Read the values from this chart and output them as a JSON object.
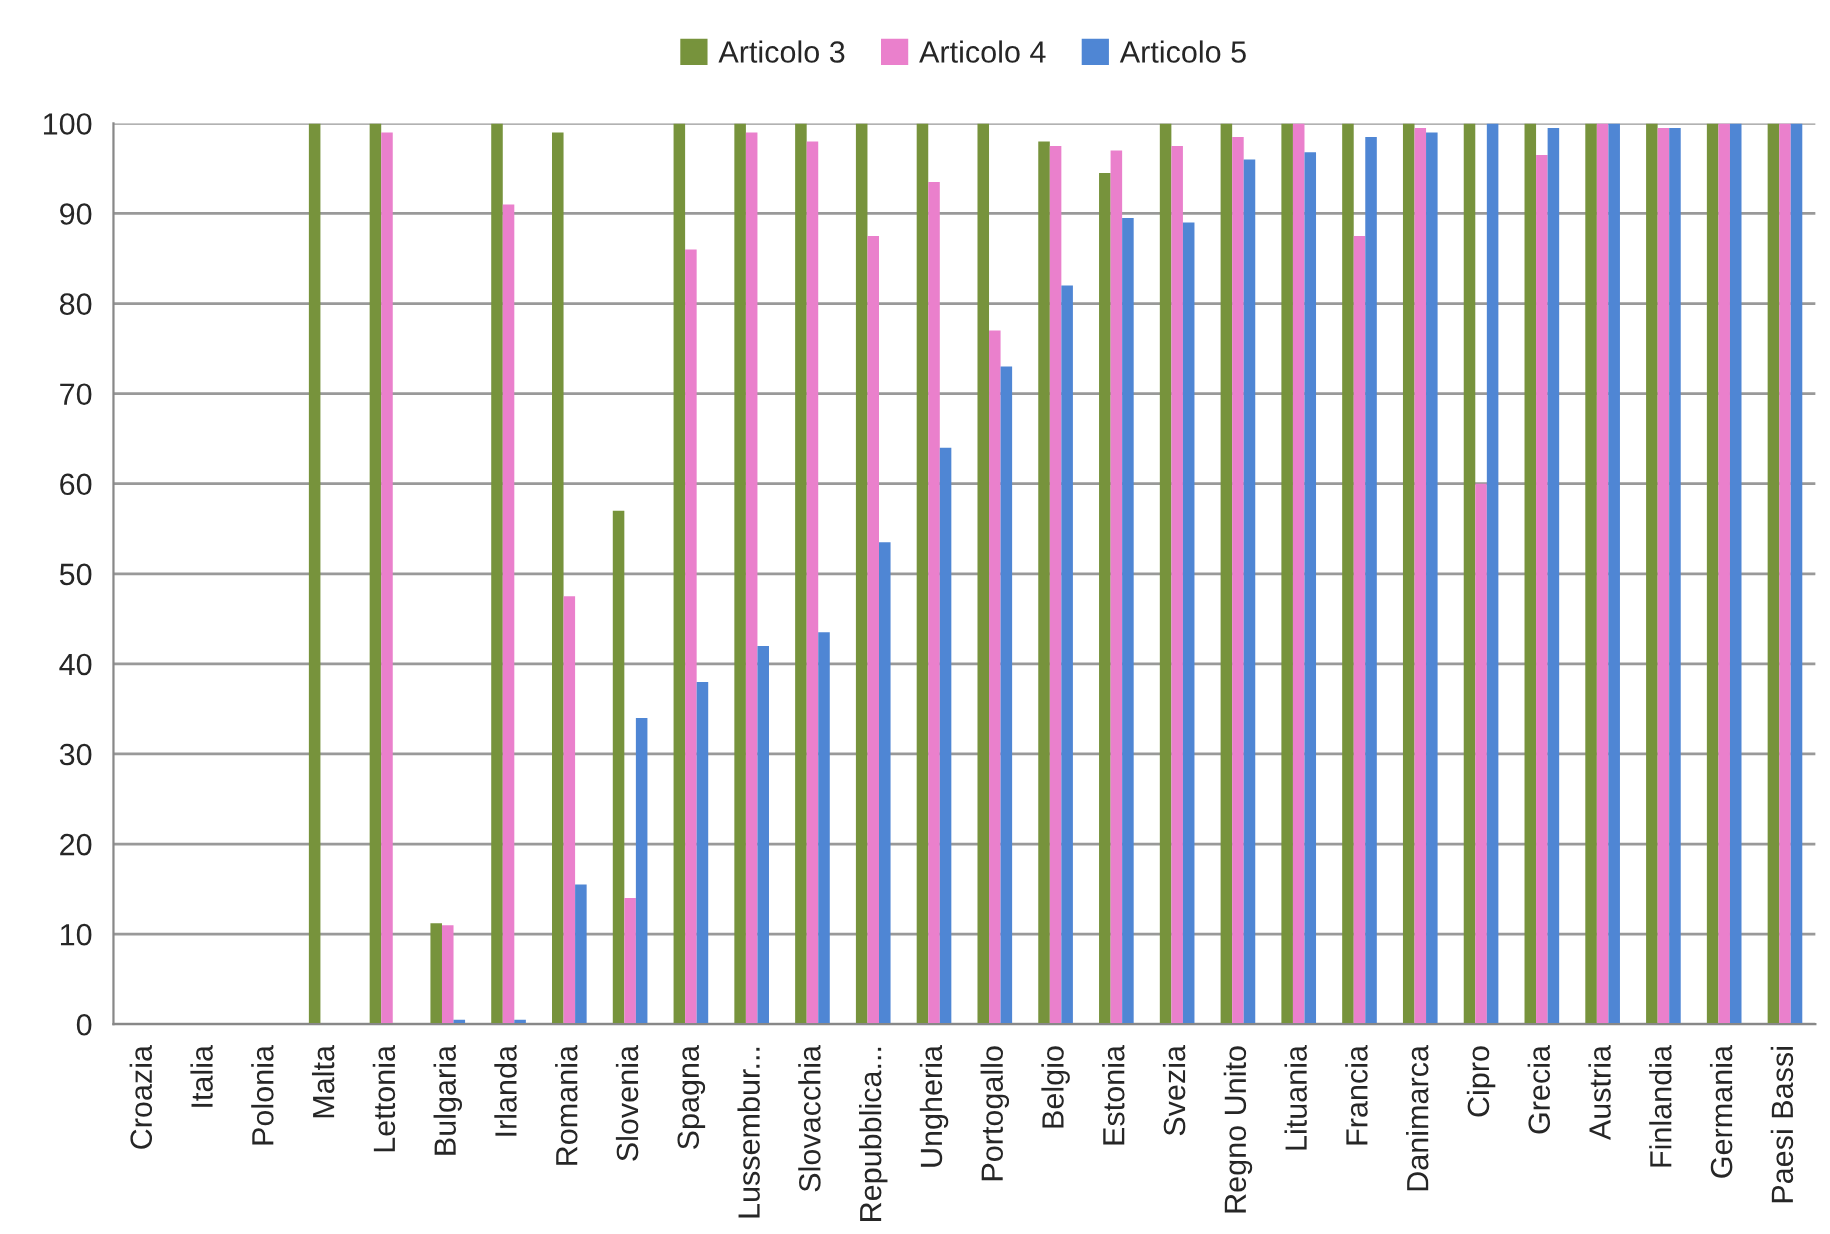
{
  "chart_data": {
    "type": "bar",
    "categories": [
      "Croazia",
      "Italia",
      "Polonia",
      "Malta",
      "Lettonia",
      "Bulgaria",
      "Irlanda",
      "Romania",
      "Slovenia",
      "Spagna",
      "Lussembur...",
      "Slovacchia",
      "Repubblica...",
      "Ungheria",
      "Portogallo",
      "Belgio",
      "Estonia",
      "Svezia",
      "Regno Unito",
      "Lituania",
      "Francia",
      "Danimarca",
      "Cipro",
      "Grecia",
      "Austria",
      "Finlandia",
      "Germania",
      "Paesi Bassi"
    ],
    "series": [
      {
        "name": "Articolo 3",
        "color": "#77933c",
        "values": [
          0,
          0,
          0,
          100,
          100,
          11.2,
          100,
          99,
          57,
          100,
          100,
          100,
          100,
          100,
          100,
          98,
          94.5,
          100,
          100,
          100,
          100,
          100,
          100,
          100,
          100,
          100,
          100,
          100
        ]
      },
      {
        "name": "Articolo 4",
        "color": "#ea80cc",
        "values": [
          0,
          0,
          0,
          0,
          99,
          11,
          91,
          47.5,
          14,
          86,
          99,
          98,
          87.5,
          93.5,
          77,
          97.5,
          97,
          97.5,
          98.5,
          100,
          87.5,
          99.5,
          60,
          96.5,
          100,
          99.5,
          100,
          100
        ]
      },
      {
        "name": "Articolo 5",
        "color": "#4f86d4",
        "values": [
          0,
          0,
          0,
          0,
          0,
          0.5,
          0.5,
          15.5,
          34,
          38,
          42,
          43.5,
          53.5,
          64,
          73,
          82,
          89.5,
          89,
          96,
          96.8,
          98.5,
          99,
          100,
          99.5,
          100,
          99.5,
          100,
          100
        ]
      }
    ],
    "ylim": [
      0,
      100
    ],
    "yticks": [
      0,
      10,
      20,
      30,
      40,
      50,
      60,
      70,
      80,
      90,
      100
    ],
    "grid": "y",
    "legend": "top"
  }
}
